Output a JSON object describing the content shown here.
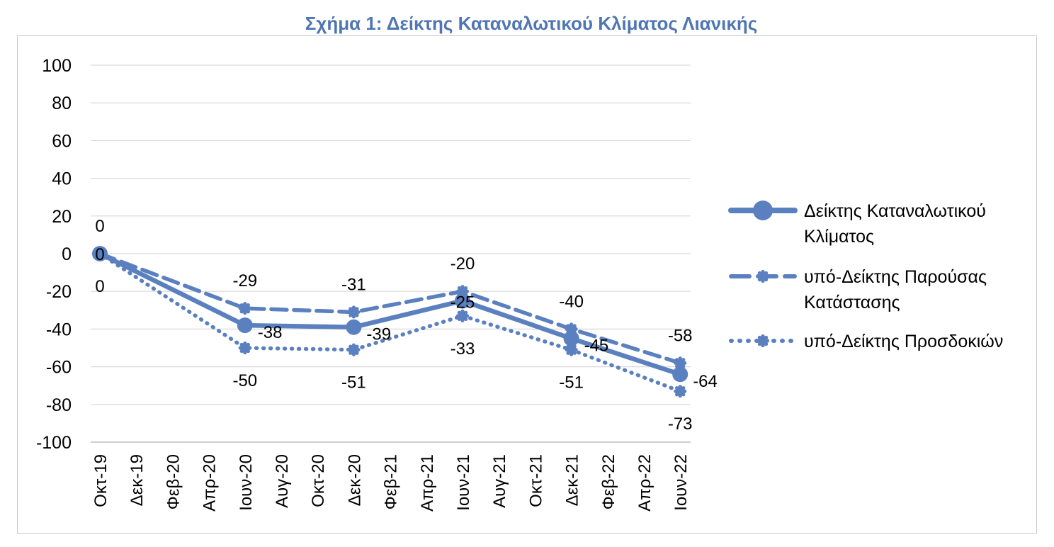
{
  "chart_data": {
    "type": "line",
    "title": "Σχήμα 1: Δείκτης Καταναλωτικού Κλίματος Λιανικής",
    "categories": [
      "Οκτ-19",
      "Δεκ-19",
      "Φεβ-20",
      "Απρ-20",
      "Ιουν-20",
      "Αυγ-20",
      "Οκτ-20",
      "Δεκ-20",
      "Φεβ-21",
      "Απρ-21",
      "Ιουν-21",
      "Αυγ-21",
      "Οκτ-21",
      "Δεκ-21",
      "Φεβ-22",
      "Απρ-22",
      "Ιουν-22"
    ],
    "ylim": [
      -100,
      100
    ],
    "yticks": [
      100,
      80,
      60,
      40,
      20,
      0,
      -20,
      -40,
      -60,
      -80,
      -100
    ],
    "grid": true,
    "legend_position": "right",
    "series": [
      {
        "name_lines": [
          "Δείκτης Καταναλωτικού",
          "Κλίματος"
        ],
        "points": [
          {
            "x": "Οκτ-19",
            "y": 0
          },
          {
            "x": "Ιουν-20",
            "y": -38
          },
          {
            "x": "Δεκ-20",
            "y": -39
          },
          {
            "x": "Ιουν-21",
            "y": -25
          },
          {
            "x": "Δεκ-21",
            "y": -45
          },
          {
            "x": "Ιουν-22",
            "y": -64
          }
        ],
        "labels": [
          "0",
          "-38",
          "-39",
          "-25",
          "-45",
          "-64"
        ],
        "style": "solid",
        "color": "#5B80C0"
      },
      {
        "name_lines": [
          "υπό-Δείκτης Παρούσας",
          "Κατάστασης"
        ],
        "points": [
          {
            "x": "Οκτ-19",
            "y": 0
          },
          {
            "x": "Ιουν-20",
            "y": -29
          },
          {
            "x": "Δεκ-20",
            "y": -31
          },
          {
            "x": "Ιουν-21",
            "y": -20
          },
          {
            "x": "Δεκ-21",
            "y": -40
          },
          {
            "x": "Ιουν-22",
            "y": -58
          }
        ],
        "labels": [
          "0",
          "-29",
          "-31",
          "-20",
          "-40",
          "-58"
        ],
        "style": "dashed",
        "color": "#5B80C0"
      },
      {
        "name_lines": [
          "υπό-Δείκτης Προσδοκιών"
        ],
        "points": [
          {
            "x": "Οκτ-19",
            "y": 0
          },
          {
            "x": "Ιουν-20",
            "y": -50
          },
          {
            "x": "Δεκ-20",
            "y": -51
          },
          {
            "x": "Ιουν-21",
            "y": -33
          },
          {
            "x": "Δεκ-21",
            "y": -51
          },
          {
            "x": "Ιουν-22",
            "y": -73
          }
        ],
        "labels": [
          "0",
          "-50",
          "-51",
          "-33",
          "-51",
          "-73"
        ],
        "style": "dotted",
        "color": "#5B80C0"
      }
    ]
  }
}
